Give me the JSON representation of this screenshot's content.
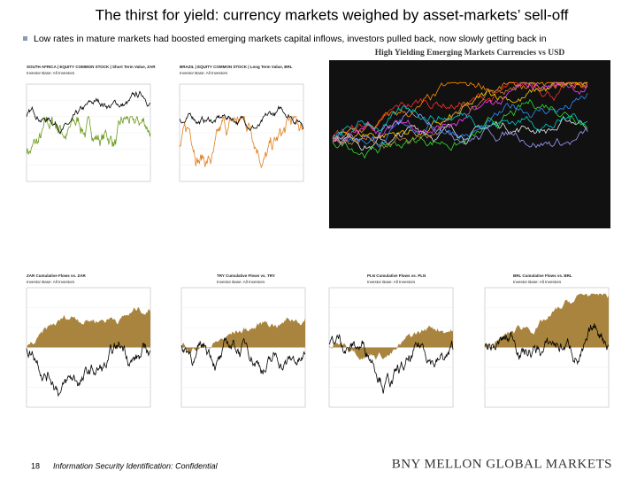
{
  "header": {
    "title": "The thirst for yield: currency markets weighed by asset-markets’ sell-off"
  },
  "bullet": "Low rates in mature markets had boosted emerging markets capital inflows, investors pulled back, now slowly getting back in",
  "panels": [
    {
      "title": "SOUTH AFRICA | EQUITY COMMON STOCK | Short Term Value, ZAR",
      "subtitle": "Investor Base: All Investors"
    },
    {
      "title": "BRAZIL | EQUITY COMMON STOCK | Long Term Value, BRL",
      "subtitle": "Investor Base: All Investors"
    },
    {
      "title": "High Yielding Emerging Markets Currencies vs USD"
    },
    {
      "title": "ZAR Cumulative Flows vs. ZAR",
      "subtitle": "Investor Base: All Investors"
    },
    {
      "title": "TRY Cumulative Flows vs. TRY",
      "subtitle": "Investor Base: All Investors"
    },
    {
      "title": "PLN Cumulative Flows vs. PLN",
      "subtitle": "Investor Base: All Investors"
    },
    {
      "title": "BRL Cumulative Flows vs. BRL",
      "subtitle": "Investor Base: All Investors"
    }
  ],
  "footer": {
    "page": "18",
    "classification": "Information Security Identification: Confidential",
    "brand": "BNY MELLON GLOBAL MARKETS"
  }
}
